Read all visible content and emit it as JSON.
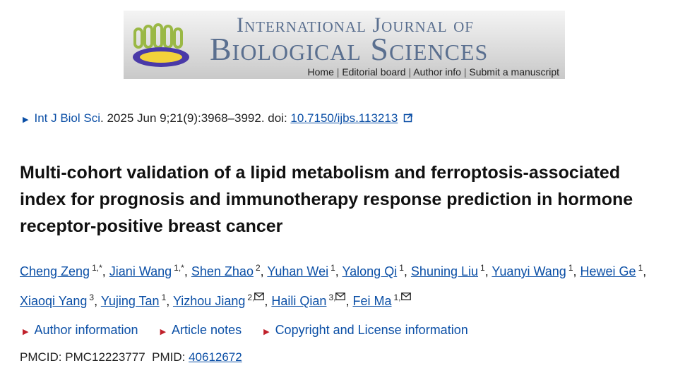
{
  "banner": {
    "line1": "International Journal of",
    "line2": "Biological Sciences",
    "nav": [
      "Home",
      "Editorial board",
      "Author info",
      "Submit a manuscript"
    ]
  },
  "citation": {
    "journal": "Int J Biol Sci",
    "details": ". 2025 Jun 9;21(9):3968–3992. doi: ",
    "doi": "10.7150/ijbs.113213"
  },
  "title": "Multi-cohort validation of a lipid metabolism and ferroptosis-associated index for prognosis and immunotherapy response prediction in hormone receptor-positive breast cancer",
  "authors": [
    {
      "name": "Cheng Zeng",
      "sup": "1,*"
    },
    {
      "name": "Jiani Wang",
      "sup": "1,*"
    },
    {
      "name": "Shen Zhao",
      "sup": "2"
    },
    {
      "name": "Yuhan Wei",
      "sup": "1"
    },
    {
      "name": "Yalong Qi",
      "sup": "1"
    },
    {
      "name": "Shuning Liu",
      "sup": "1"
    },
    {
      "name": "Yuanyi Wang",
      "sup": "1"
    },
    {
      "name": "Hewei Ge",
      "sup": "1"
    },
    {
      "name": "Xiaoqi Yang",
      "sup": "3"
    },
    {
      "name": "Yujing Tan",
      "sup": "1"
    },
    {
      "name": "Yizhou Jiang",
      "sup": "2,"
    },
    {
      "name": "Haili Qian",
      "sup": "3,"
    },
    {
      "name": "Fei Ma",
      "sup": "1,"
    }
  ],
  "links": [
    "Author information",
    "Article notes",
    "Copyright and License information"
  ],
  "ids": {
    "pmcid_label": "PMCID:",
    "pmcid": "PMC12223777",
    "pmid_label": "PMID:",
    "pmid": "40612672"
  }
}
